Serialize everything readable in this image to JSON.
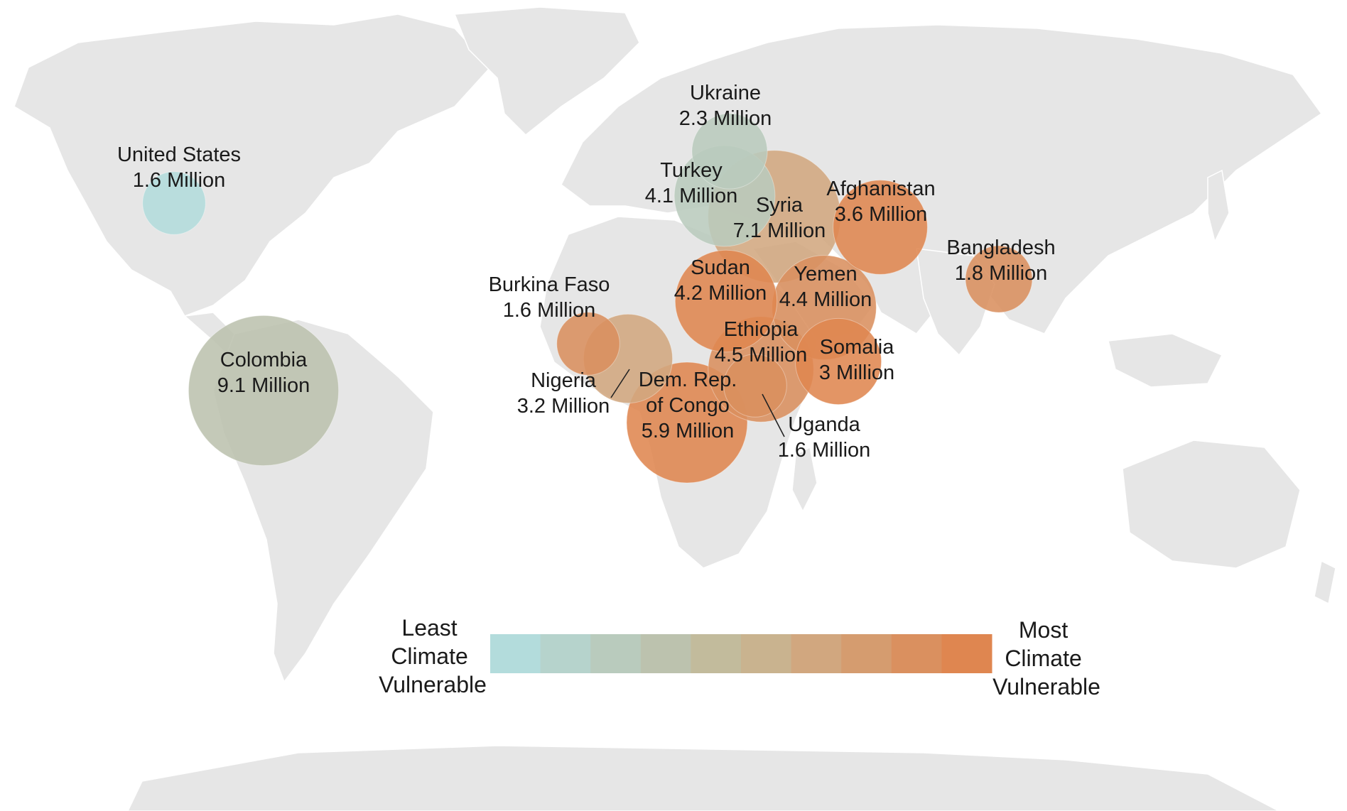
{
  "legend": {
    "left_label": [
      "Least",
      "Climate",
      "Vulnerable"
    ],
    "right_label": [
      "Most",
      "Climate",
      "Vulnerable"
    ],
    "colors": [
      "#b3dcdc",
      "#b6d3cc",
      "#b9cbbd",
      "#bcc2ae",
      "#c2bb9c",
      "#c9b38f",
      "#d1a77f",
      "#d59c6f",
      "#da905f",
      "#df8650"
    ]
  },
  "countries": [
    {
      "key": "united-states",
      "name": "United States",
      "value_label": "1.6 Million",
      "value_millions": 1.6,
      "vulnerability": 0
    },
    {
      "key": "colombia",
      "name": "Colombia",
      "value_label": "9.1 Million",
      "value_millions": 9.1,
      "vulnerability": 3
    },
    {
      "key": "ukraine",
      "name": "Ukraine",
      "value_label": "2.3 Million",
      "value_millions": 2.3,
      "vulnerability": 2
    },
    {
      "key": "turkey",
      "name": "Turkey",
      "value_label": "4.1 Million",
      "value_millions": 4.1,
      "vulnerability": 2
    },
    {
      "key": "syria",
      "name": "Syria",
      "value_label": "7.1 Million",
      "value_millions": 7.1,
      "vulnerability": 6
    },
    {
      "key": "afghanistan",
      "name": "Afghanistan",
      "value_label": "3.6 Million",
      "value_millions": 3.6,
      "vulnerability": 9
    },
    {
      "key": "bangladesh",
      "name": "Bangladesh",
      "value_label": "1.8 Million",
      "value_millions": 1.8,
      "vulnerability": 8
    },
    {
      "key": "burkina-faso",
      "name": "Burkina Faso",
      "value_label": "1.6 Million",
      "value_millions": 1.6,
      "vulnerability": 8
    },
    {
      "key": "nigeria",
      "name": "Nigeria",
      "value_label": "3.2 Million",
      "value_millions": 3.2,
      "vulnerability": 6
    },
    {
      "key": "sudan",
      "name": "Sudan",
      "value_label": "4.2 Million",
      "value_millions": 4.2,
      "vulnerability": 9
    },
    {
      "key": "yemen",
      "name": "Yemen",
      "value_label": "4.4 Million",
      "value_millions": 4.4,
      "vulnerability": 8
    },
    {
      "key": "ethiopia",
      "name": "Ethiopia",
      "value_label": "4.5 Million",
      "value_millions": 4.5,
      "vulnerability": 8
    },
    {
      "key": "somalia",
      "name": "Somalia",
      "value_label": "3 Million",
      "value_millions": 3.0,
      "vulnerability": 9
    },
    {
      "key": "dr-congo",
      "name": "Dem. Rep. of Congo",
      "name_lines": [
        "Dem. Rep.",
        "of Congo"
      ],
      "value_label": "5.9 Million",
      "value_millions": 5.9,
      "vulnerability": 9
    },
    {
      "key": "uganda",
      "name": "Uganda",
      "value_label": "1.6 Million",
      "value_millions": 1.6,
      "vulnerability": 8
    }
  ]
}
